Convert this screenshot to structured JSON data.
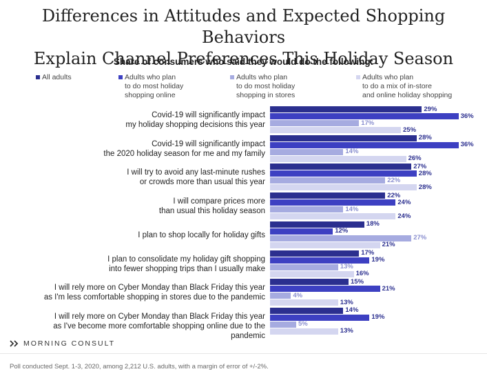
{
  "title_lines": [
    "Differences in Attitudes and Expected Shopping Behaviors",
    "Explain Channel Preferences This Holiday Season"
  ],
  "colors": {
    "all_adults": "#2b2f8f",
    "online": "#3d40c2",
    "stores": "#a6abe0",
    "mix": "#d4d6f0",
    "label_dark": "#2b2f8f",
    "label_light": "#8a8fcf"
  },
  "legend": [
    {
      "label_lines": [
        "All adults"
      ]
    },
    {
      "label_lines": [
        "Adults who plan",
        "to do most holiday",
        "shopping online"
      ]
    },
    {
      "label_lines": [
        "Adults who plan",
        "to do most holiday",
        "shopping in stores"
      ]
    },
    {
      "label_lines": [
        "Adults who plan",
        "to do a mix of in-store",
        "and online holiday shopping"
      ]
    }
  ],
  "chart_data": {
    "type": "bar",
    "orientation": "horizontal",
    "title": "Share of consumers who said they would do the following:",
    "xlim": [
      0,
      40
    ],
    "unit": "%",
    "categories": [
      [
        "Covid-19 will significantly impact",
        "my holiday shopping decisions this year"
      ],
      [
        "Covid-19 will significantly impact",
        "the 2020 holiday season for me and my family"
      ],
      [
        "I will try to avoid any last-minute rushes",
        "or crowds more than usual this year"
      ],
      [
        "I will compare prices more",
        "than usual this holiday season"
      ],
      [
        "I plan to shop locally for holiday gifts"
      ],
      [
        "I plan to consolidate my holiday gift shopping",
        "into fewer shopping trips than I usually make"
      ],
      [
        "I will rely more on Cyber Monday than Black Friday this year",
        "as I'm less comfortable shopping in stores due to the pandemic"
      ],
      [
        "I will rely more on Cyber Monday than Black Friday this year",
        "as I've become more comfortable shopping online due to the pandemic"
      ]
    ],
    "series": [
      {
        "name": "All adults",
        "values": [
          29,
          28,
          27,
          22,
          18,
          17,
          15,
          14
        ]
      },
      {
        "name": "Adults who plan to do most holiday shopping online",
        "values": [
          36,
          36,
          28,
          24,
          12,
          19,
          21,
          19
        ]
      },
      {
        "name": "Adults who plan to do most holiday shopping in stores",
        "values": [
          17,
          14,
          22,
          14,
          27,
          13,
          4,
          5
        ]
      },
      {
        "name": "Adults who plan to do a mix of in-store and online holiday shopping",
        "values": [
          25,
          26,
          28,
          24,
          21,
          16,
          13,
          13
        ]
      }
    ]
  },
  "brand": "MORNING CONSULT",
  "footnote": "Poll conducted Sept. 1-3, 2020, among 2,212 U.S. adults, with a margin of error of +/-2%."
}
